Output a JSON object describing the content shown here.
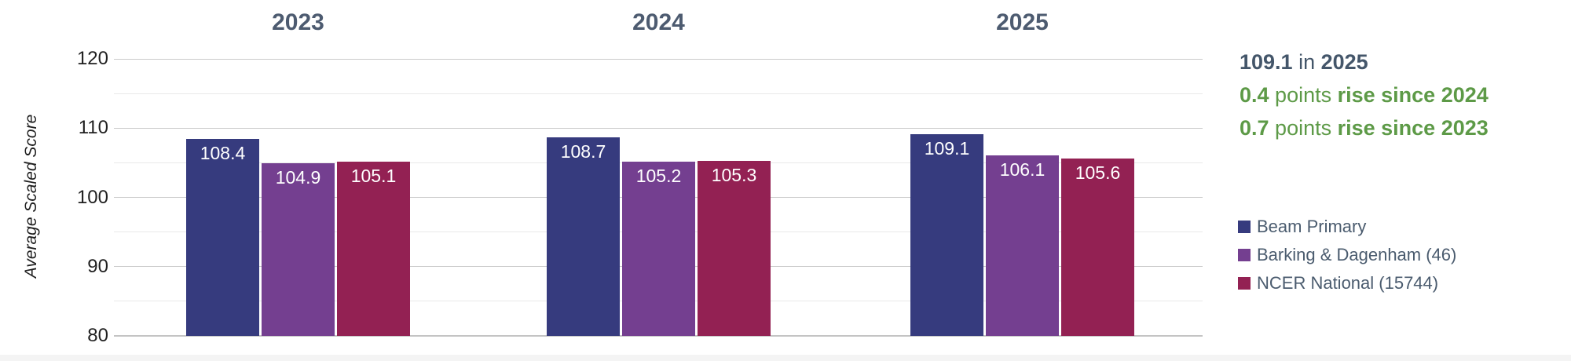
{
  "chart_data": {
    "type": "bar",
    "title": "",
    "xlabel": "",
    "ylabel": "Average Scaled Score",
    "categories": [
      "2023",
      "2024",
      "2025"
    ],
    "series": [
      {
        "name": "Beam Primary",
        "color": "#363b7e",
        "values": [
          108.4,
          108.7,
          109.1
        ]
      },
      {
        "name": "Barking & Dagenham (46)",
        "color": "#743f90",
        "values": [
          104.9,
          105.2,
          106.1
        ]
      },
      {
        "name": "NCER National (15744)",
        "color": "#932153",
        "values": [
          105.1,
          105.3,
          105.6
        ]
      }
    ],
    "ylim": [
      80,
      120
    ],
    "ytick_labels": [
      80,
      90,
      100,
      110,
      120
    ],
    "gridline_step": 5,
    "grid": true,
    "legend_position": "right",
    "bar_value_labels": true
  },
  "summary": {
    "line1": {
      "value": "109.1",
      "mid": " in ",
      "rest": "2025"
    },
    "line2": {
      "value": "0.4",
      "mid": " points ",
      "rest": "rise since 2024"
    },
    "line3": {
      "value": "0.7",
      "mid": " points ",
      "rest": "rise since 2023"
    }
  },
  "colors": {
    "slate_text": "#44566a",
    "green_text": "#5d9a47",
    "legend_text": "#4a5b6e",
    "tick_text": "#1f1f1f",
    "major_gridline": "#cbcbcb",
    "minor_gridline": "#e9e9e9",
    "baseline": "#c4c4c4",
    "bar_navy": "#363b7e",
    "bar_purple": "#743f90",
    "bar_maroon": "#932153",
    "background": "#ffffff"
  }
}
